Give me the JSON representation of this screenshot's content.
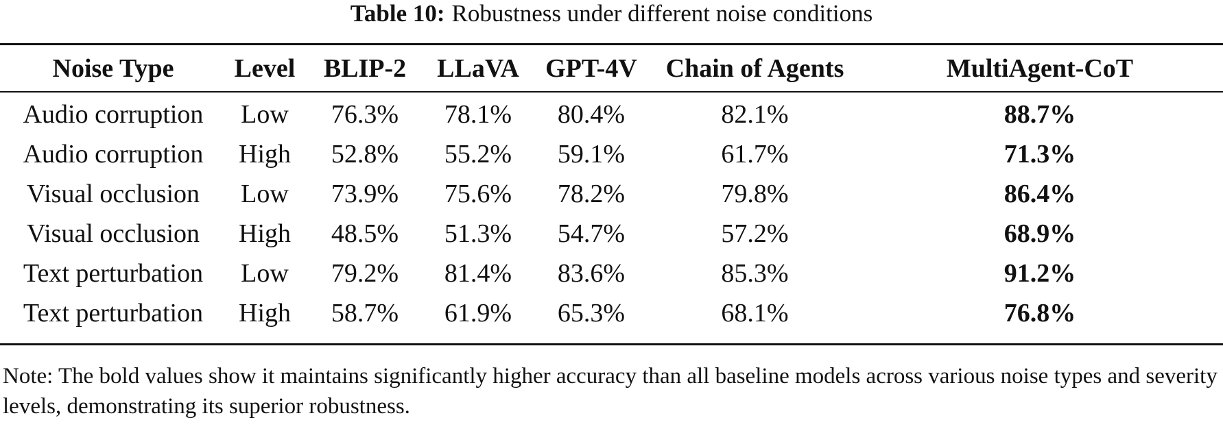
{
  "caption": {
    "label": "Table 10:",
    "text": "Robustness under different noise conditions"
  },
  "table": {
    "headers": [
      "Noise Type",
      "Level",
      "BLIP-2",
      "LLaVA",
      "GPT-4V",
      "Chain of Agents",
      "MultiAgent-CoT"
    ],
    "rows": [
      [
        "Audio corruption",
        "Low",
        "76.3%",
        "78.1%",
        "80.4%",
        "82.1%",
        "88.7%"
      ],
      [
        "Audio corruption",
        "High",
        "52.8%",
        "55.2%",
        "59.1%",
        "61.7%",
        "71.3%"
      ],
      [
        "Visual occlusion",
        "Low",
        "73.9%",
        "75.6%",
        "78.2%",
        "79.8%",
        "86.4%"
      ],
      [
        "Visual occlusion",
        "High",
        "48.5%",
        "51.3%",
        "54.7%",
        "57.2%",
        "68.9%"
      ],
      [
        "Text perturbation",
        "Low",
        "79.2%",
        "81.4%",
        "83.6%",
        "85.3%",
        "91.2%"
      ],
      [
        "Text perturbation",
        "High",
        "58.7%",
        "61.9%",
        "65.3%",
        "68.1%",
        "76.8%"
      ]
    ]
  },
  "note": "Note: The bold values show it maintains significantly higher accuracy than all baseline models across various noise types and severity levels, demonstrating its superior robustness."
}
